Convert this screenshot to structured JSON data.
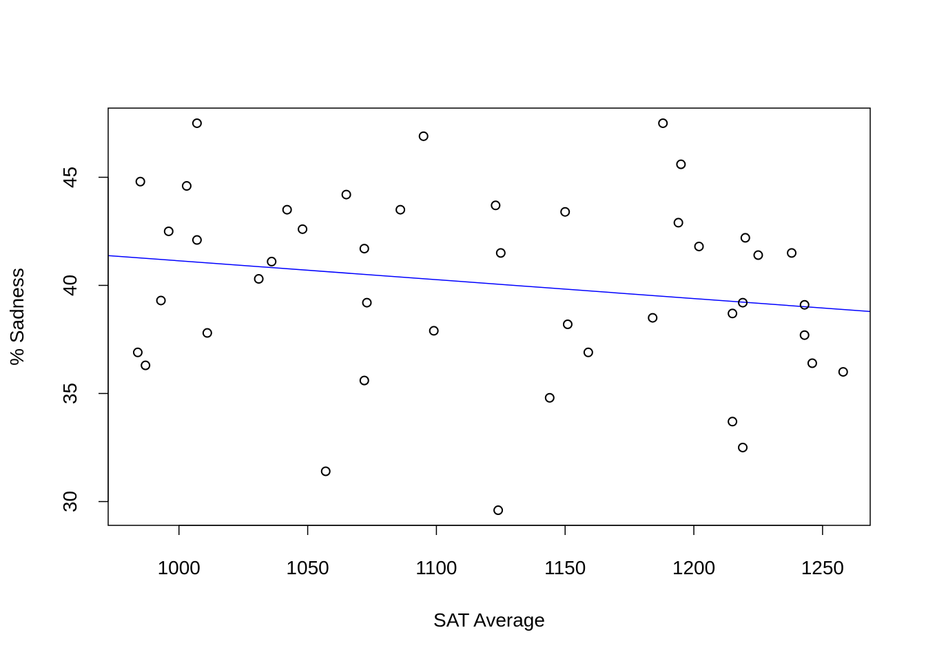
{
  "chart_data": {
    "type": "scatter",
    "title": "",
    "xlabel": "SAT Average",
    "ylabel": "% Sadness",
    "xlim": [
      972.5,
      1268.5
    ],
    "ylim": [
      28.9,
      48.2
    ],
    "x_ticks": [
      1000,
      1050,
      1100,
      1150,
      1200,
      1250
    ],
    "x_tick_labels": [
      "1000",
      "1050",
      "1100",
      "1150",
      "1200",
      "1250"
    ],
    "y_ticks": [
      30,
      35,
      40,
      45
    ],
    "y_tick_labels": [
      "30",
      "35",
      "40",
      "45"
    ],
    "grid": false,
    "legend": "none",
    "colors": {
      "points": "#000000",
      "fit_line": "#0000ff",
      "frame": "#000000"
    },
    "fit_line": {
      "slope": -0.008733,
      "intercept": 49.87
    },
    "points": [
      {
        "x": 984,
        "y": 36.9
      },
      {
        "x": 985,
        "y": 44.8
      },
      {
        "x": 987,
        "y": 36.3
      },
      {
        "x": 993,
        "y": 39.3
      },
      {
        "x": 996,
        "y": 42.5
      },
      {
        "x": 1003,
        "y": 44.6
      },
      {
        "x": 1007,
        "y": 47.5
      },
      {
        "x": 1007,
        "y": 42.1
      },
      {
        "x": 1011,
        "y": 37.8
      },
      {
        "x": 1031,
        "y": 40.3
      },
      {
        "x": 1036,
        "y": 41.1
      },
      {
        "x": 1042,
        "y": 43.5
      },
      {
        "x": 1048,
        "y": 42.6
      },
      {
        "x": 1057,
        "y": 31.4
      },
      {
        "x": 1065,
        "y": 44.2
      },
      {
        "x": 1072,
        "y": 41.7
      },
      {
        "x": 1072,
        "y": 35.6
      },
      {
        "x": 1073,
        "y": 39.2
      },
      {
        "x": 1086,
        "y": 43.5
      },
      {
        "x": 1095,
        "y": 46.9
      },
      {
        "x": 1099,
        "y": 37.9
      },
      {
        "x": 1123,
        "y": 43.7
      },
      {
        "x": 1124,
        "y": 29.6
      },
      {
        "x": 1125,
        "y": 41.5
      },
      {
        "x": 1144,
        "y": 34.8
      },
      {
        "x": 1150,
        "y": 43.4
      },
      {
        "x": 1151,
        "y": 38.2
      },
      {
        "x": 1159,
        "y": 36.9
      },
      {
        "x": 1184,
        "y": 38.5
      },
      {
        "x": 1188,
        "y": 47.5
      },
      {
        "x": 1194,
        "y": 42.9
      },
      {
        "x": 1195,
        "y": 45.6
      },
      {
        "x": 1202,
        "y": 41.8
      },
      {
        "x": 1215,
        "y": 38.7
      },
      {
        "x": 1215,
        "y": 33.7
      },
      {
        "x": 1219,
        "y": 39.2
      },
      {
        "x": 1219,
        "y": 32.5
      },
      {
        "x": 1220,
        "y": 42.2
      },
      {
        "x": 1225,
        "y": 41.4
      },
      {
        "x": 1238,
        "y": 41.5
      },
      {
        "x": 1243,
        "y": 39.1
      },
      {
        "x": 1243,
        "y": 37.7
      },
      {
        "x": 1246,
        "y": 36.4
      },
      {
        "x": 1258,
        "y": 36.0
      }
    ]
  }
}
